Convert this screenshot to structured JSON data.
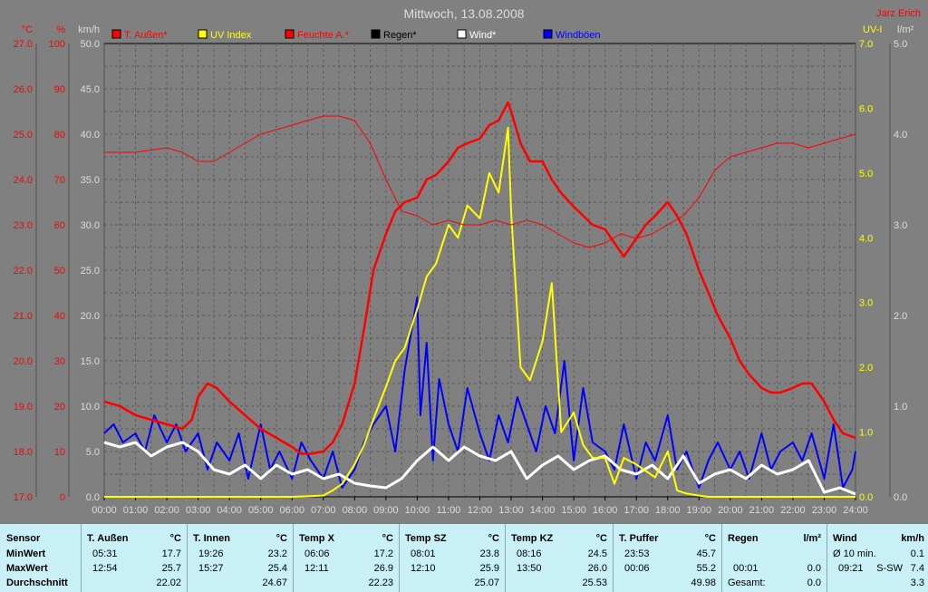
{
  "chart_data": {
    "type": "line",
    "title": "Mittwoch, 13.08.2008",
    "author": "Jarz Erich",
    "x_ticks": [
      "00:00",
      "01:00",
      "02:00",
      "03:00",
      "04:00",
      "05:00",
      "06:00",
      "07:00",
      "08:00",
      "09:00",
      "10:00",
      "11:00",
      "12:00",
      "13:00",
      "14:00",
      "15:00",
      "16:00",
      "17:00",
      "18:00",
      "19:00",
      "20:00",
      "21:00",
      "22:00",
      "23:00",
      "24:00"
    ],
    "axes": {
      "temp": {
        "unit": "°C",
        "min": 17,
        "max": 27,
        "ticks": [
          "17.0",
          "18.0",
          "19.0",
          "20.0",
          "21.0",
          "22.0",
          "23.0",
          "24.0",
          "25.0",
          "26.0",
          "27.0"
        ]
      },
      "humidity": {
        "unit": "%",
        "min": 0,
        "max": 100,
        "ticks": [
          "0",
          "10",
          "20",
          "30",
          "40",
          "50",
          "60",
          "70",
          "80",
          "90",
          "100"
        ]
      },
      "wind": {
        "unit": "km/h",
        "min": 0,
        "max": 50,
        "ticks": [
          "0.0",
          "5.0",
          "10.0",
          "15.0",
          "20.0",
          "25.0",
          "30.0",
          "35.0",
          "40.0",
          "45.0",
          "50.0"
        ]
      },
      "uv": {
        "unit": "UV-I",
        "min": 0,
        "max": 7,
        "ticks": [
          "0.0",
          "1.0",
          "2.0",
          "3.0",
          "4.0",
          "5.0",
          "6.0",
          "7.0"
        ]
      },
      "rain": {
        "unit": "l/m²",
        "min": 0,
        "max": 5,
        "ticks": [
          "0.0",
          "1.0",
          "2.0",
          "3.0",
          "4.0",
          "5.0"
        ]
      }
    },
    "legend": [
      {
        "name": "T. Außen*",
        "color": "#ff0000"
      },
      {
        "name": "UV Index",
        "color": "#ffff00"
      },
      {
        "name": "Feuchte A.*",
        "color": "#ff0000"
      },
      {
        "name": "Regen*",
        "color": "#000000"
      },
      {
        "name": "Wind*",
        "color": "#ffffff"
      },
      {
        "name": "Windböen",
        "color": "#0000ff"
      }
    ],
    "series": [
      {
        "name": "T. Außen*",
        "color": "#ff0000",
        "axis": "temp",
        "x": [
          0,
          0.5,
          1,
          1.5,
          2,
          2.5,
          2.8,
          3,
          3.3,
          3.6,
          4,
          4.5,
          5,
          5.5,
          6,
          6.3,
          6.6,
          7,
          7.3,
          7.6,
          8,
          8.3,
          8.6,
          9,
          9.3,
          9.6,
          10,
          10.3,
          10.6,
          11,
          11.3,
          11.6,
          12,
          12.3,
          12.6,
          12.9,
          13,
          13.3,
          13.6,
          14,
          14.3,
          14.6,
          15,
          15.3,
          15.6,
          16,
          16.3,
          16.6,
          17,
          17.3,
          17.6,
          18,
          18.3,
          18.6,
          19,
          19.3,
          19.6,
          20,
          20.3,
          20.6,
          21,
          21.3,
          21.6,
          22,
          22.3,
          22.6,
          23,
          23.3,
          23.6,
          24
        ],
        "y": [
          19.1,
          19.0,
          18.8,
          18.7,
          18.6,
          18.5,
          18.7,
          19.2,
          19.5,
          19.4,
          19.1,
          18.8,
          18.5,
          18.3,
          18.1,
          17.95,
          17.95,
          18.0,
          18.2,
          18.6,
          19.5,
          20.7,
          22.0,
          22.8,
          23.3,
          23.5,
          23.6,
          24.0,
          24.1,
          24.4,
          24.7,
          24.8,
          24.9,
          25.2,
          25.3,
          25.7,
          25.5,
          24.8,
          24.4,
          24.4,
          24.0,
          23.7,
          23.4,
          23.2,
          23.0,
          22.9,
          22.6,
          22.3,
          22.7,
          23.0,
          23.2,
          23.5,
          23.2,
          22.8,
          22.0,
          21.5,
          21.0,
          20.5,
          20.0,
          19.7,
          19.4,
          19.3,
          19.3,
          19.4,
          19.5,
          19.5,
          19.1,
          18.7,
          18.4,
          18.3
        ]
      },
      {
        "name": "Feuchte A.*",
        "color": "#ff0000",
        "axis": "humidity",
        "x": [
          0,
          1,
          2,
          2.5,
          3,
          3.5,
          4,
          4.5,
          5,
          5.5,
          6,
          6.5,
          7,
          7.5,
          8,
          8.5,
          9,
          9.5,
          10,
          10.5,
          11,
          11.5,
          12,
          12.5,
          13,
          13.5,
          14,
          14.5,
          15,
          15.5,
          16,
          16.5,
          17,
          17.5,
          18,
          18.5,
          19,
          19.5,
          20,
          20.5,
          21,
          21.5,
          22,
          22.5,
          23,
          23.5,
          24
        ],
        "y": [
          76,
          76,
          77,
          76,
          74,
          74,
          76,
          78,
          80,
          81,
          82,
          83,
          84,
          84,
          83,
          78,
          70,
          63,
          62,
          60,
          61,
          60,
          60,
          61,
          60,
          61,
          60,
          58,
          56,
          55,
          56,
          58,
          57,
          58,
          60,
          62,
          66,
          72,
          75,
          76,
          77,
          78,
          78,
          77,
          78,
          79,
          80
        ]
      },
      {
        "name": "UV Index",
        "color": "#ffff00",
        "axis": "uv",
        "x": [
          0,
          5,
          6,
          7,
          7.3,
          7.6,
          8,
          8.3,
          8.6,
          9,
          9.3,
          9.6,
          10,
          10.3,
          10.6,
          11,
          11.3,
          11.6,
          12,
          12.3,
          12.6,
          12.9,
          13,
          13.3,
          13.6,
          14,
          14.3,
          14.6,
          15,
          15.3,
          15.6,
          16,
          16.3,
          16.6,
          17,
          17.3,
          17.6,
          18,
          18.3,
          18.6,
          19,
          19.3,
          20,
          21,
          22,
          23,
          24
        ],
        "y": [
          0,
          0,
          0,
          0.02,
          0.1,
          0.2,
          0.5,
          0.8,
          1.2,
          1.7,
          2.1,
          2.3,
          2.9,
          3.4,
          3.6,
          4.2,
          4.0,
          4.5,
          4.3,
          5.0,
          4.7,
          5.7,
          4.4,
          2.0,
          1.8,
          2.4,
          3.3,
          1.0,
          1.3,
          0.8,
          0.6,
          0.6,
          0.2,
          0.6,
          0.5,
          0.4,
          0.3,
          0.7,
          0.1,
          0.05,
          0.02,
          0,
          0,
          0,
          0,
          0,
          0
        ]
      },
      {
        "name": "Wind*",
        "color": "#ffffff",
        "axis": "wind",
        "x": [
          0,
          0.5,
          1,
          1.5,
          2,
          2.5,
          3,
          3.5,
          4,
          4.5,
          5,
          5.5,
          6,
          6.5,
          7,
          7.5,
          8,
          8.5,
          9,
          9.5,
          10,
          10.5,
          11,
          11.5,
          12,
          12.5,
          13,
          13.5,
          14,
          14.5,
          15,
          15.5,
          16,
          16.5,
          17,
          17.5,
          18,
          18.5,
          19,
          19.5,
          20,
          20.5,
          21,
          21.5,
          22,
          22.5,
          23,
          23.5,
          24
        ],
        "y": [
          6.0,
          5.5,
          6.0,
          4.5,
          5.5,
          6.0,
          5.0,
          3.0,
          2.5,
          3.5,
          2.0,
          3.5,
          2.5,
          3.0,
          2.0,
          2.5,
          1.5,
          1.2,
          1.0,
          2.0,
          4.0,
          5.5,
          4.0,
          5.5,
          4.5,
          4.0,
          5.0,
          2.0,
          3.5,
          4.5,
          3.0,
          4.0,
          4.5,
          3.0,
          2.5,
          3.5,
          2.0,
          4.5,
          1.5,
          2.5,
          3.0,
          2.0,
          3.5,
          2.5,
          3.0,
          4.0,
          0.5,
          1.0,
          0.3
        ]
      },
      {
        "name": "Windböen",
        "color": "#0000ff",
        "axis": "wind",
        "x": [
          0,
          0.3,
          0.6,
          1,
          1.3,
          1.6,
          2,
          2.3,
          2.6,
          3,
          3.3,
          3.6,
          4,
          4.3,
          4.6,
          5,
          5.3,
          5.6,
          6,
          6.3,
          6.6,
          7,
          7.3,
          7.6,
          8,
          8.3,
          8.6,
          9,
          9.3,
          9.6,
          10,
          10.1,
          10.3,
          10.5,
          10.7,
          11,
          11.3,
          11.6,
          12,
          12.3,
          12.6,
          12.9,
          13.2,
          13.5,
          13.8,
          14.1,
          14.4,
          14.7,
          15,
          15.3,
          15.6,
          16,
          16.3,
          16.6,
          17,
          17.3,
          17.6,
          18,
          18.3,
          18.6,
          19,
          19.3,
          19.6,
          20,
          20.3,
          20.6,
          21,
          21.3,
          21.6,
          22,
          22.3,
          22.6,
          23,
          23.3,
          23.6,
          23.9,
          24
        ],
        "y": [
          7,
          8,
          6,
          7,
          5,
          9,
          6,
          8,
          5,
          7,
          3,
          6,
          4,
          7,
          2,
          8,
          3,
          5,
          2,
          6,
          4,
          2,
          5,
          1,
          3,
          6,
          8,
          10,
          5,
          14,
          22,
          9,
          17,
          4,
          13,
          8,
          5,
          12,
          7,
          4,
          9,
          6,
          11,
          8,
          5,
          10,
          7,
          15,
          4,
          12,
          6,
          5,
          3,
          8,
          2,
          6,
          4,
          9,
          3,
          5,
          1,
          4,
          6,
          3,
          5,
          2,
          7,
          3,
          5,
          6,
          4,
          7,
          2,
          8,
          1,
          3,
          5
        ]
      },
      {
        "name": "Regen*",
        "color": "#000000",
        "axis": "rain",
        "x": [
          0,
          24
        ],
        "y": [
          0,
          0
        ]
      }
    ]
  },
  "summary": {
    "row_labels": {
      "header": "Sensor",
      "min": "MinWert",
      "max": "MaxWert",
      "avg": "Durchschnitt"
    },
    "sensors": [
      {
        "name": "T. Außen",
        "unit": "°C",
        "min_time": "05:31",
        "min": "17.7",
        "max_time": "12:54",
        "max": "25.7",
        "avg": "22.02"
      },
      {
        "name": "T. Innen",
        "unit": "°C",
        "min_time": "19:26",
        "min": "23.2",
        "max_time": "15:27",
        "max": "25.4",
        "avg": "24.67"
      },
      {
        "name": "Temp X",
        "unit": "°C",
        "min_time": "06:06",
        "min": "17.2",
        "max_time": "12:11",
        "max": "26.9",
        "avg": "22.23"
      },
      {
        "name": "Temp SZ",
        "unit": "°C",
        "min_time": "08:01",
        "min": "23.8",
        "max_time": "12:10",
        "max": "25.9",
        "avg": "25.07"
      },
      {
        "name": "Temp KZ",
        "unit": "°C",
        "min_time": "08:16",
        "min": "24.5",
        "max_time": "13:50",
        "max": "26.0",
        "avg": "25.53"
      },
      {
        "name": "T. Puffer",
        "unit": "°C",
        "min_time": "23:53",
        "min": "45.7",
        "max_time": "00:06",
        "max": "55.2",
        "avg": "49.98"
      }
    ],
    "rain": {
      "name": "Regen",
      "unit": "l/m²",
      "min_time": "00:01",
      "min": "0.0",
      "total_label": "Gesamt:",
      "total": "0.0"
    },
    "wind": {
      "name": "Wind",
      "unit": "km/h",
      "avg_label": "Ø 10 min.",
      "avg": "0.1",
      "max_time": "09:21",
      "dir": "S-SW",
      "max": "7.4",
      "day_avg": "3.3"
    }
  }
}
